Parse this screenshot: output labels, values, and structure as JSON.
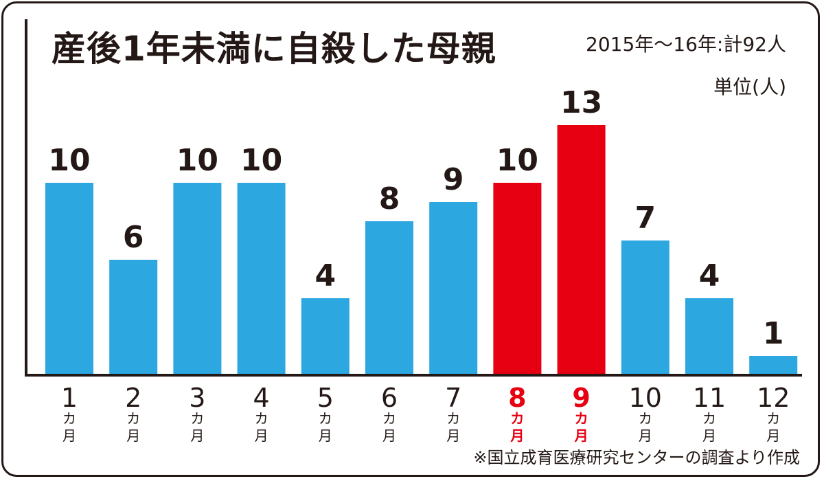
{
  "title": "産後1年未満に自殺した母親",
  "subtitle": "2015年〜16年:計92人",
  "unit": "単位(人)",
  "source": "※国立成育医療研究センターの調査より作成",
  "colors": {
    "bar": "#2DA7E0",
    "highlight": "#E60012",
    "text": "#231815"
  },
  "chart_data": {
    "type": "bar",
    "categories": [
      "1",
      "2",
      "3",
      "4",
      "5",
      "6",
      "7",
      "8",
      "9",
      "10",
      "11",
      "12"
    ],
    "category_suffix": [
      "カ",
      "月"
    ],
    "values": [
      10,
      6,
      10,
      10,
      4,
      8,
      9,
      10,
      13,
      7,
      4,
      1
    ],
    "highlighted": [
      "8",
      "9"
    ],
    "title": "産後1年未満に自殺した母親",
    "ylabel": "単位(人)",
    "ylim": [
      0,
      14
    ],
    "grid": false,
    "legend": "none"
  }
}
